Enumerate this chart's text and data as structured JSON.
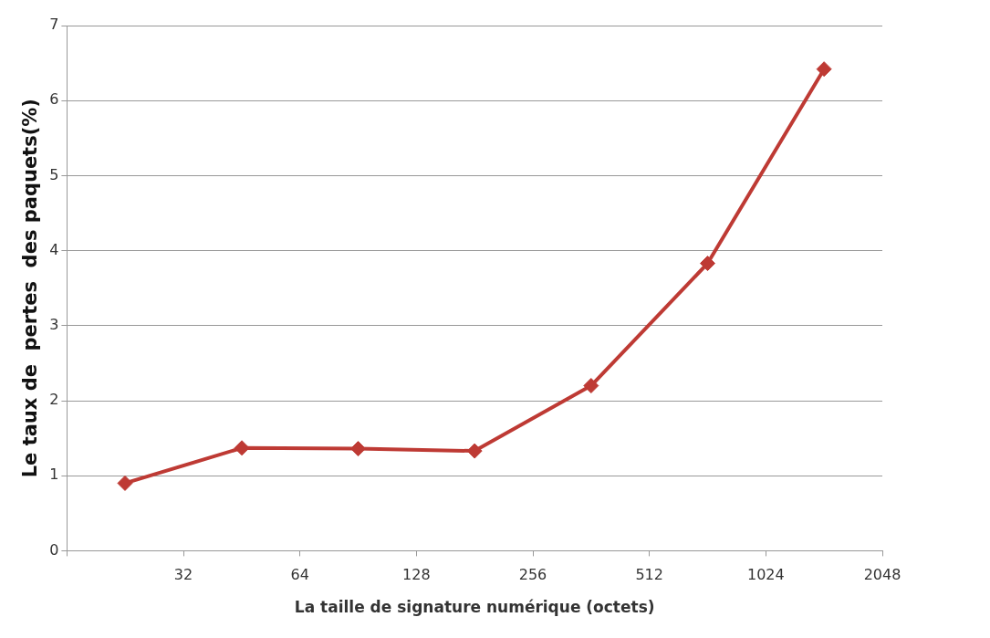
{
  "chart_data": {
    "type": "line",
    "xlabel": "La taille de signature numérique (octets)",
    "ylabel": "Le taux de  pertes  des paquets(%)",
    "x": [
      22.6,
      45.3,
      90.5,
      181,
      362,
      724,
      1448
    ],
    "series": [
      {
        "color": "#be3a34",
        "values": [
          0.9,
          1.37,
          1.36,
          1.33,
          2.2,
          3.83,
          6.42
        ]
      }
    ],
    "log": "x",
    "xlim": [
      16,
      2048
    ],
    "xticks": [
      {
        "value": 16,
        "label": null
      },
      32,
      64,
      128,
      256,
      512,
      1024,
      2048
    ],
    "ylim": [
      0,
      7
    ],
    "yticks": [
      0,
      1,
      2,
      3,
      4,
      5,
      6,
      7
    ],
    "grid": "y",
    "legend": false,
    "marker": "diamond",
    "line_style": "solid"
  }
}
